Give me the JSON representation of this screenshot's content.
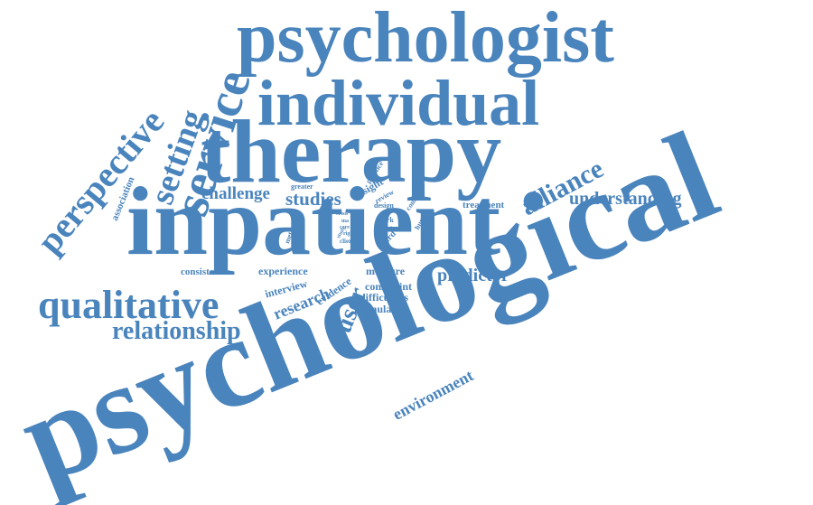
{
  "word_color": "#4a84bd",
  "background": "#ffffff",
  "words": {
    "psychologist": "psychologist",
    "individual": "individual",
    "therapy": "therapy",
    "inpatient": "inpatient",
    "psychological": "psychological",
    "service": "service",
    "setting": "setting",
    "perspective": "perspective",
    "association": "association",
    "alliance": "alliance",
    "understanding": "understanding",
    "challenge": "challenge",
    "studies": "studies",
    "qualitative": "qualitative",
    "relationship": "relationship",
    "predictor": "predictor",
    "consistent": "consistent",
    "experience": "experience",
    "interview": "interview",
    "research": "research",
    "evidence": "evidence",
    "user": "user",
    "measure": "measure",
    "constraint": "constraint",
    "difficulties": "difficulties",
    "formulation": "formulation",
    "environment": "environment",
    "treatment": "treatment",
    "greater": "greater",
    "insight": "insight",
    "practice": "practice",
    "review": "review",
    "design": "design",
    "context": "context",
    "human": "human",
    "work": "work",
    "most": "most",
    "ward": "ward",
    "method": "method",
    "crisis": "crisis",
    "right": "right",
    "client": "client",
    "ma": "ma",
    "care": "care",
    "study": "study"
  }
}
